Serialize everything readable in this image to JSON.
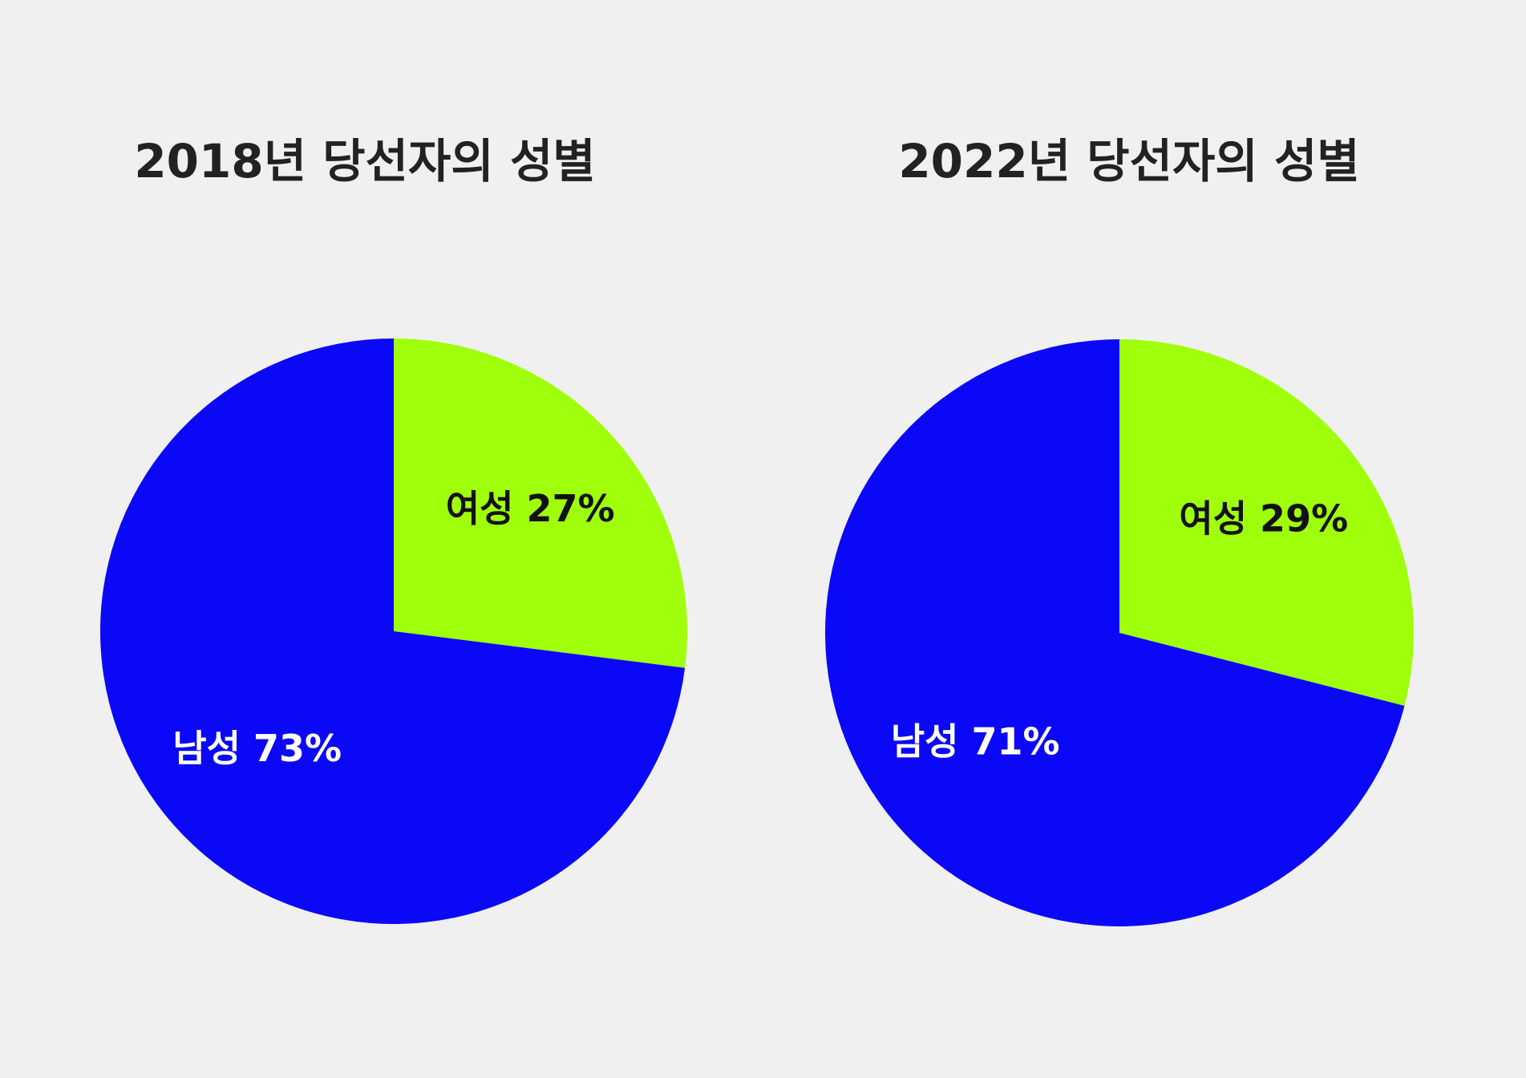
{
  "colors": {
    "background": "#f0f0f0",
    "male": "#0b08f7",
    "female": "#a0ff0a",
    "title_text": "#222222"
  },
  "chart_data": [
    {
      "type": "pie",
      "title": "2018년 당선자의 성별",
      "slices": [
        {
          "name": "여성",
          "value": 27,
          "label": "여성 27%",
          "color": "#a0ff0a",
          "label_color": "#111111"
        },
        {
          "name": "남성",
          "value": 73,
          "label": "남성 73%",
          "color": "#0b08f7",
          "label_color": "#ffffff"
        }
      ],
      "start": "12 o'clock",
      "direction": "clockwise"
    },
    {
      "type": "pie",
      "title": "2022년 당선자의 성별",
      "slices": [
        {
          "name": "여성",
          "value": 29,
          "label": "여성 29%",
          "color": "#a0ff0a",
          "label_color": "#111111"
        },
        {
          "name": "남성",
          "value": 71,
          "label": "남성 71%",
          "color": "#0b08f7",
          "label_color": "#ffffff"
        }
      ],
      "start": "12 o'clock",
      "direction": "clockwise"
    }
  ]
}
